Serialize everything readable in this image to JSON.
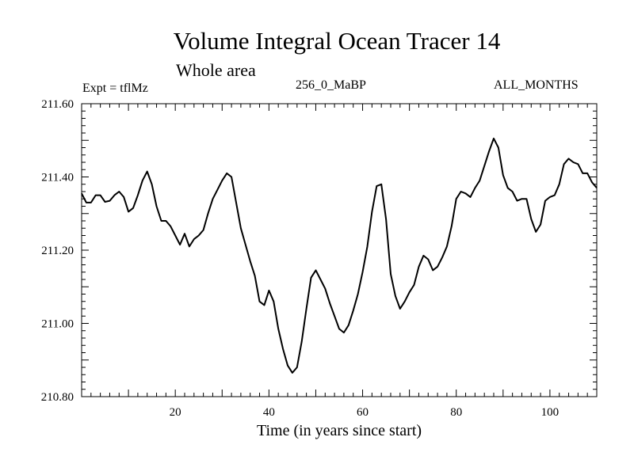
{
  "header": {
    "title": "Volume Integral Ocean Tracer 14",
    "subtitle": "Whole area",
    "expt": "Expt = tflMz",
    "run": "256_0_MaBP",
    "period": "ALL_MONTHS"
  },
  "chart_data": {
    "type": "line",
    "title": "Volume Integral Ocean Tracer 14",
    "subtitle": "Whole area",
    "xlabel": "Time (in years since start)",
    "ylabel": "",
    "xlim": [
      0,
      110
    ],
    "ylim": [
      210.8,
      211.6
    ],
    "x_ticks": [
      20,
      40,
      60,
      80,
      100
    ],
    "y_ticks": [
      210.8,
      211.0,
      211.2,
      211.4,
      211.6
    ],
    "y_tick_labels": [
      "210.80",
      "211.00",
      "211.20",
      "211.40",
      "211.60"
    ],
    "grid": false,
    "series": [
      {
        "color": "#000000",
        "x": [
          0,
          1,
          2,
          3,
          4,
          5,
          6,
          7,
          8,
          9,
          10,
          11,
          12,
          13,
          14,
          15,
          16,
          17,
          18,
          19,
          20,
          21,
          22,
          23,
          24,
          25,
          26,
          27,
          28,
          29,
          30,
          31,
          32,
          33,
          34,
          35,
          36,
          37,
          38,
          39,
          40,
          41,
          42,
          43,
          44,
          45,
          46,
          47,
          48,
          49,
          50,
          51,
          52,
          53,
          54,
          55,
          56,
          57,
          58,
          59,
          60,
          61,
          62,
          63,
          64,
          65,
          66,
          67,
          68,
          69,
          70,
          71,
          72,
          73,
          74,
          75,
          76,
          77,
          78,
          79,
          80,
          81,
          82,
          83,
          84,
          85,
          86,
          87,
          88,
          89,
          90,
          91,
          92,
          93,
          94,
          95,
          96,
          97,
          98,
          99,
          100,
          101,
          102,
          103,
          104,
          105,
          106,
          107,
          108,
          109,
          110
        ],
        "y": [
          211.355,
          211.33,
          211.33,
          211.35,
          211.35,
          211.332,
          211.335,
          211.35,
          211.36,
          211.345,
          211.305,
          211.315,
          211.35,
          211.39,
          211.415,
          211.38,
          211.32,
          211.28,
          211.28,
          211.265,
          211.24,
          211.215,
          211.245,
          211.21,
          211.23,
          211.24,
          211.255,
          211.3,
          211.34,
          211.365,
          211.39,
          211.41,
          211.4,
          211.33,
          211.26,
          211.215,
          211.17,
          211.13,
          211.06,
          211.05,
          211.09,
          211.06,
          210.985,
          210.93,
          210.885,
          210.865,
          210.88,
          210.95,
          211.04,
          211.125,
          211.145,
          211.12,
          211.095,
          211.055,
          211.02,
          210.985,
          210.975,
          210.995,
          211.035,
          211.08,
          211.14,
          211.21,
          211.305,
          211.375,
          211.38,
          211.285,
          211.135,
          211.075,
          211.04,
          211.06,
          211.085,
          211.105,
          211.155,
          211.185,
          211.175,
          211.145,
          211.155,
          211.18,
          211.21,
          211.265,
          211.34,
          211.36,
          211.355,
          211.345,
          211.37,
          211.39,
          211.43,
          211.47,
          211.505,
          211.48,
          211.405,
          211.37,
          211.36,
          211.335,
          211.34,
          211.34,
          211.285,
          211.25,
          211.27,
          211.335,
          211.345,
          211.35,
          211.38,
          211.435,
          211.45,
          211.44,
          211.435,
          211.41,
          211.41,
          211.385,
          211.37
        ]
      }
    ]
  }
}
